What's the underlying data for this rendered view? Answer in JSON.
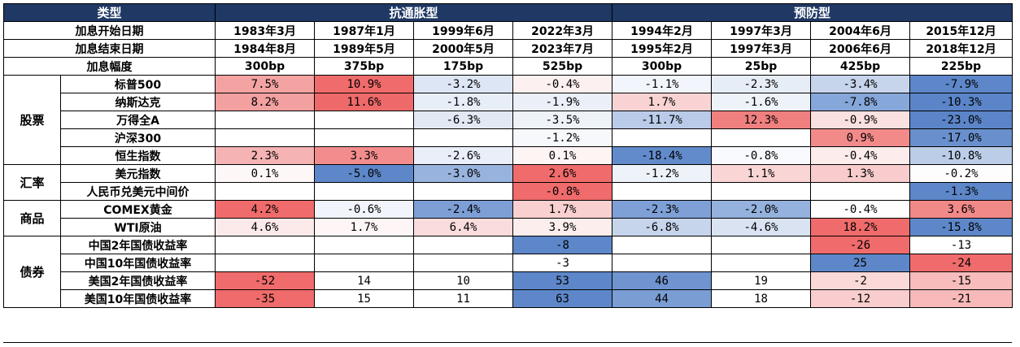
{
  "header": {
    "type_label": "类型",
    "group_anti": "抗通胀型",
    "group_prev": "预防型"
  },
  "meta_rows": [
    {
      "label": "加息开始日期",
      "values": [
        "1983年3月",
        "1987年1月",
        "1999年6月",
        "2022年3月",
        "1994年2月",
        "1997年3月",
        "2004年6月",
        "2015年12月"
      ]
    },
    {
      "label": "加息结束日期",
      "values": [
        "1984年8月",
        "1989年5月",
        "2000年5月",
        "2023年7月",
        "1995年2月",
        "1997年3月",
        "2006年6月",
        "2018年12月"
      ]
    },
    {
      "label": "加息幅度",
      "values": [
        "300bp",
        "375bp",
        "175bp",
        "525bp",
        "300bp",
        "25bp",
        "425bp",
        "225bp"
      ]
    }
  ],
  "categories": [
    {
      "name": "股票",
      "rows": [
        {
          "label": "标普500",
          "values": [
            "7.5%",
            "10.9%",
            "-3.2%",
            "-0.4%",
            "-1.1%",
            "-2.3%",
            "-3.4%",
            "-7.9%"
          ],
          "colors": [
            "#f4a3a3",
            "#f06b6b",
            "#dde6f4",
            "#fdf0f0",
            "#f2f5fb",
            "#e7edf7",
            "#c7d5ec",
            "#5d87c9"
          ]
        },
        {
          "label": "纳斯达克",
          "values": [
            "8.2%",
            "11.6%",
            "-1.8%",
            "-1.9%",
            "1.7%",
            "-1.6%",
            "-7.8%",
            "-10.3%"
          ],
          "colors": [
            "#f3a0a0",
            "#ee6a6a",
            "#e8eef8",
            "#eaeff8",
            "#f9d3d3",
            "#eef2f9",
            "#86a7da",
            "#5b85c8"
          ]
        },
        {
          "label": "万得全A",
          "values": [
            "",
            "",
            "-6.3%",
            "-3.5%",
            "-11.7%",
            "12.3%",
            "-0.9%",
            "-23.0%"
          ],
          "colors": [
            "#ffffff",
            "#ffffff",
            "#e2e9f5",
            "#eef2f9",
            "#b9cbe8",
            "#f08080",
            "#fbe0e0",
            "#5b85c8"
          ]
        },
        {
          "label": "沪深300",
          "values": [
            "",
            "",
            "",
            "-1.2%",
            "",
            "",
            "0.9%",
            "-17.0%"
          ],
          "colors": [
            "#ffffff",
            "#ffffff",
            "#ffffff",
            "#f6f8fc",
            "#ffffff",
            "#ffffff",
            "#f28a8a",
            "#6990cd"
          ]
        },
        {
          "label": "恒生指数",
          "values": [
            "2.3%",
            "3.3%",
            "-2.6%",
            "0.1%",
            "-18.4%",
            "-0.8%",
            "-0.4%",
            "-10.8%"
          ],
          "colors": [
            "#f6b3b3",
            "#f38d8d",
            "#e9eef8",
            "#fdf4f4",
            "#628bcb",
            "#f8fafd",
            "#fcecec",
            "#bccde8"
          ]
        }
      ]
    },
    {
      "name": "汇率",
      "rows": [
        {
          "label": "美元指数",
          "values": [
            "0.1%",
            "-5.0%",
            "-3.0%",
            "2.6%",
            "-1.2%",
            "1.1%",
            "1.3%",
            "-0.2%"
          ],
          "colors": [
            "#fdf7f7",
            "#5d87c9",
            "#98b4de",
            "#f06b6b",
            "#eef2f9",
            "#f9d5d5",
            "#f8cccc",
            "#fdfdfe"
          ]
        },
        {
          "label": "人民币兑美元中间价",
          "values": [
            "",
            "",
            "",
            "-0.8%",
            "",
            "",
            "",
            "-1.3%"
          ],
          "colors": [
            "#ffffff",
            "#ffffff",
            "#ffffff",
            "#f06b6b",
            "#ffffff",
            "#ffffff",
            "#ffffff",
            "#5d87c9"
          ]
        }
      ]
    },
    {
      "name": "商品",
      "rows": [
        {
          "label": "COMEX黄金",
          "values": [
            "4.2%",
            "-0.6%",
            "-2.4%",
            "1.7%",
            "-2.3%",
            "-2.0%",
            "-0.4%",
            "3.6%"
          ],
          "colors": [
            "#f06b6b",
            "#f1f4fa",
            "#7d9fd6",
            "#f9d0d0",
            "#7ea0d6",
            "#95b1dd",
            "#fefefe",
            "#f28989"
          ]
        },
        {
          "label": "WTI原油",
          "values": [
            "4.6%",
            "1.7%",
            "6.4%",
            "3.9%",
            "-6.8%",
            "-4.6%",
            "18.2%",
            "-15.8%"
          ],
          "colors": [
            "#fceaea",
            "#fef6f6",
            "#fadcdc",
            "#fdeeee",
            "#c7d5ec",
            "#d9e3f2",
            "#f06b6b",
            "#5d87c9"
          ]
        }
      ]
    },
    {
      "name": "债券",
      "rows": [
        {
          "label": "中国2年国债收益率",
          "values": [
            "",
            "",
            "",
            "-8",
            "",
            "",
            "-26",
            "-13"
          ],
          "colors": [
            "#ffffff",
            "#ffffff",
            "#ffffff",
            "#5d87c9",
            "#ffffff",
            "#ffffff",
            "#f06b6b",
            "#ffffff"
          ]
        },
        {
          "label": "中国10年国债收益率",
          "values": [
            "",
            "",
            "",
            "-3",
            "",
            "",
            "25",
            "-24"
          ],
          "colors": [
            "#ffffff",
            "#ffffff",
            "#ffffff",
            "#ffffff",
            "#ffffff",
            "#ffffff",
            "#5d87c9",
            "#f06b6b"
          ]
        },
        {
          "label": "美国2年国债收益率",
          "values": [
            "-52",
            "14",
            "10",
            "53",
            "46",
            "19",
            "-2",
            "-15"
          ],
          "colors": [
            "#f06b6b",
            "#ffffff",
            "#ffffff",
            "#5d87c9",
            "#6f94cf",
            "#ffffff",
            "#fbd9d9",
            "#f8bcbc"
          ]
        },
        {
          "label": "美国10年国债收益率",
          "values": [
            "-35",
            "15",
            "11",
            "63",
            "44",
            "18",
            "-12",
            "-21"
          ],
          "colors": [
            "#f06b6b",
            "#ffffff",
            "#ffffff",
            "#5d87c9",
            "#7a9dd4",
            "#ffffff",
            "#f9cdcd",
            "#f7b9b9"
          ]
        }
      ]
    }
  ]
}
